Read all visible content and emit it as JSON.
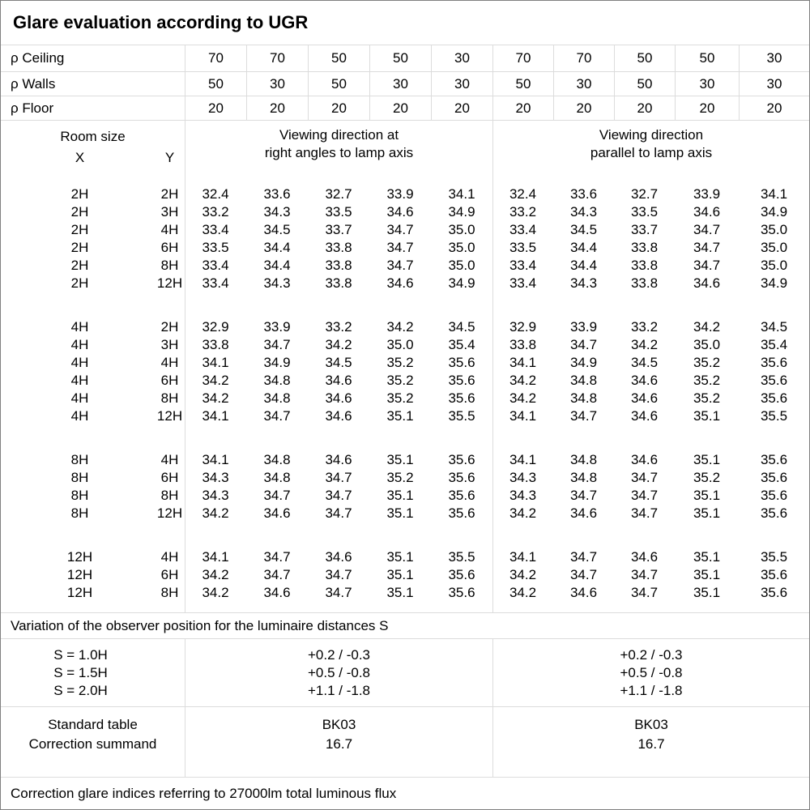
{
  "title": "Glare evaluation according to UGR",
  "reflectance_rows": [
    {
      "label": "ρ Ceiling",
      "values": [
        "70",
        "70",
        "50",
        "50",
        "30",
        "70",
        "70",
        "50",
        "50",
        "30"
      ]
    },
    {
      "label": "ρ Walls",
      "values": [
        "50",
        "30",
        "50",
        "30",
        "30",
        "50",
        "30",
        "50",
        "30",
        "30"
      ]
    },
    {
      "label": "ρ Floor",
      "values": [
        "20",
        "20",
        "20",
        "20",
        "20",
        "20",
        "20",
        "20",
        "20",
        "20"
      ]
    }
  ],
  "room_header": {
    "title": "Room size",
    "x": "X",
    "y": "Y"
  },
  "viewing": {
    "right_angles": {
      "line1": "Viewing direction at",
      "line2": "right angles to lamp axis"
    },
    "parallel": {
      "line1": "Viewing direction",
      "line2": "parallel to lamp axis"
    }
  },
  "ugr_table": {
    "groups": [
      {
        "rows": [
          {
            "x": "2H",
            "y": "2H",
            "right_angles": [
              "32.4",
              "33.6",
              "32.7",
              "33.9",
              "34.1"
            ],
            "parallel": [
              "32.4",
              "33.6",
              "32.7",
              "33.9",
              "34.1"
            ]
          },
          {
            "x": "2H",
            "y": "3H",
            "right_angles": [
              "33.2",
              "34.3",
              "33.5",
              "34.6",
              "34.9"
            ],
            "parallel": [
              "33.2",
              "34.3",
              "33.5",
              "34.6",
              "34.9"
            ]
          },
          {
            "x": "2H",
            "y": "4H",
            "right_angles": [
              "33.4",
              "34.5",
              "33.7",
              "34.7",
              "35.0"
            ],
            "parallel": [
              "33.4",
              "34.5",
              "33.7",
              "34.7",
              "35.0"
            ]
          },
          {
            "x": "2H",
            "y": "6H",
            "right_angles": [
              "33.5",
              "34.4",
              "33.8",
              "34.7",
              "35.0"
            ],
            "parallel": [
              "33.5",
              "34.4",
              "33.8",
              "34.7",
              "35.0"
            ]
          },
          {
            "x": "2H",
            "y": "8H",
            "right_angles": [
              "33.4",
              "34.4",
              "33.8",
              "34.7",
              "35.0"
            ],
            "parallel": [
              "33.4",
              "34.4",
              "33.8",
              "34.7",
              "35.0"
            ]
          },
          {
            "x": "2H",
            "y": "12H",
            "right_angles": [
              "33.4",
              "34.3",
              "33.8",
              "34.6",
              "34.9"
            ],
            "parallel": [
              "33.4",
              "34.3",
              "33.8",
              "34.6",
              "34.9"
            ]
          }
        ]
      },
      {
        "rows": [
          {
            "x": "4H",
            "y": "2H",
            "right_angles": [
              "32.9",
              "33.9",
              "33.2",
              "34.2",
              "34.5"
            ],
            "parallel": [
              "32.9",
              "33.9",
              "33.2",
              "34.2",
              "34.5"
            ]
          },
          {
            "x": "4H",
            "y": "3H",
            "right_angles": [
              "33.8",
              "34.7",
              "34.2",
              "35.0",
              "35.4"
            ],
            "parallel": [
              "33.8",
              "34.7",
              "34.2",
              "35.0",
              "35.4"
            ]
          },
          {
            "x": "4H",
            "y": "4H",
            "right_angles": [
              "34.1",
              "34.9",
              "34.5",
              "35.2",
              "35.6"
            ],
            "parallel": [
              "34.1",
              "34.9",
              "34.5",
              "35.2",
              "35.6"
            ]
          },
          {
            "x": "4H",
            "y": "6H",
            "right_angles": [
              "34.2",
              "34.8",
              "34.6",
              "35.2",
              "35.6"
            ],
            "parallel": [
              "34.2",
              "34.8",
              "34.6",
              "35.2",
              "35.6"
            ]
          },
          {
            "x": "4H",
            "y": "8H",
            "right_angles": [
              "34.2",
              "34.8",
              "34.6",
              "35.2",
              "35.6"
            ],
            "parallel": [
              "34.2",
              "34.8",
              "34.6",
              "35.2",
              "35.6"
            ]
          },
          {
            "x": "4H",
            "y": "12H",
            "right_angles": [
              "34.1",
              "34.7",
              "34.6",
              "35.1",
              "35.5"
            ],
            "parallel": [
              "34.1",
              "34.7",
              "34.6",
              "35.1",
              "35.5"
            ]
          }
        ]
      },
      {
        "rows": [
          {
            "x": "8H",
            "y": "4H",
            "right_angles": [
              "34.1",
              "34.8",
              "34.6",
              "35.1",
              "35.6"
            ],
            "parallel": [
              "34.1",
              "34.8",
              "34.6",
              "35.1",
              "35.6"
            ]
          },
          {
            "x": "8H",
            "y": "6H",
            "right_angles": [
              "34.3",
              "34.8",
              "34.7",
              "35.2",
              "35.6"
            ],
            "parallel": [
              "34.3",
              "34.8",
              "34.7",
              "35.2",
              "35.6"
            ]
          },
          {
            "x": "8H",
            "y": "8H",
            "right_angles": [
              "34.3",
              "34.7",
              "34.7",
              "35.1",
              "35.6"
            ],
            "parallel": [
              "34.3",
              "34.7",
              "34.7",
              "35.1",
              "35.6"
            ]
          },
          {
            "x": "8H",
            "y": "12H",
            "right_angles": [
              "34.2",
              "34.6",
              "34.7",
              "35.1",
              "35.6"
            ],
            "parallel": [
              "34.2",
              "34.6",
              "34.7",
              "35.1",
              "35.6"
            ]
          }
        ]
      },
      {
        "rows": [
          {
            "x": "12H",
            "y": "4H",
            "right_angles": [
              "34.1",
              "34.7",
              "34.6",
              "35.1",
              "35.5"
            ],
            "parallel": [
              "34.1",
              "34.7",
              "34.6",
              "35.1",
              "35.5"
            ]
          },
          {
            "x": "12H",
            "y": "6H",
            "right_angles": [
              "34.2",
              "34.7",
              "34.7",
              "35.1",
              "35.6"
            ],
            "parallel": [
              "34.2",
              "34.7",
              "34.7",
              "35.1",
              "35.6"
            ]
          },
          {
            "x": "12H",
            "y": "8H",
            "right_angles": [
              "34.2",
              "34.6",
              "34.7",
              "35.1",
              "35.6"
            ],
            "parallel": [
              "34.2",
              "34.6",
              "34.7",
              "35.1",
              "35.6"
            ]
          }
        ]
      }
    ]
  },
  "variation_note": "Variation of the observer position for the luminaire distances S",
  "spacing_rows": [
    {
      "label": "S = 1.0H",
      "right_angles": "+0.2 / -0.3",
      "parallel": "+0.2 / -0.3"
    },
    {
      "label": "S = 1.5H",
      "right_angles": "+0.5 / -0.8",
      "parallel": "+0.5 / -0.8"
    },
    {
      "label": "S = 2.0H",
      "right_angles": "+1.1 / -1.8",
      "parallel": "+1.1 / -1.8"
    }
  ],
  "summary": {
    "standard_table_label": "Standard table",
    "correction_summand_label": "Correction summand",
    "right_angles": {
      "standard_table": "BK03",
      "correction_summand": "16.7"
    },
    "parallel": {
      "standard_table": "BK03",
      "correction_summand": "16.7"
    }
  },
  "footer": "Correction glare indices referring to 27000lm total luminous flux",
  "colors": {
    "line": "#dcdcdc",
    "border": "#808080",
    "text": "#000000",
    "background": "#ffffff"
  }
}
